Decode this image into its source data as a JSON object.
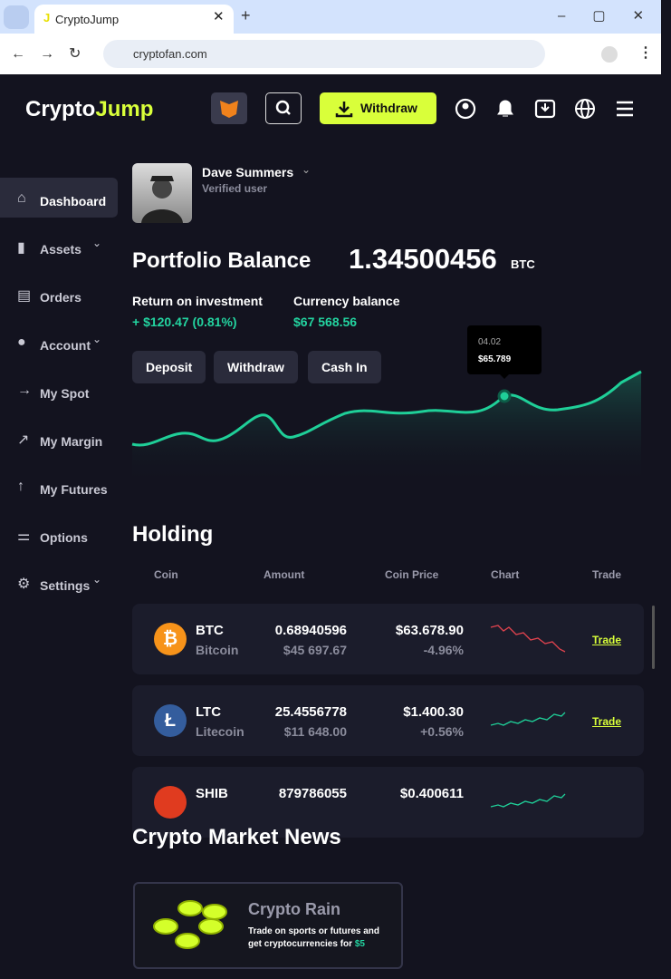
{
  "browser": {
    "tab_title": "CryptoJump",
    "url": "cryptofan.com"
  },
  "header": {
    "logo_part1": "Crypto",
    "logo_part2": "Jump",
    "withdraw_button": "Withdraw"
  },
  "sidebar": {
    "items": [
      "Dashboard",
      "Assets",
      "Orders",
      "Account",
      "My Spot",
      "My Margin",
      "My Futures",
      "Options",
      "Settings"
    ]
  },
  "user": {
    "name": "Dave Summers",
    "status": "Verified user"
  },
  "portfolio": {
    "label": "Portfolio Balance",
    "amount": "1.34500456",
    "unit": "BTC",
    "stats": [
      {
        "label": "Return on investment",
        "value": "+ $120.47 (0.81%)"
      },
      {
        "label": "Currency balance",
        "value": "$67 568.56"
      }
    ],
    "buttons": [
      "Deposit",
      "Withdraw",
      "Cash In"
    ],
    "tooltip": {
      "date": "04.02",
      "value": "$65.789"
    }
  },
  "holding": {
    "title": "Holding",
    "columns": [
      "Coin",
      "Amount",
      "Coin Price",
      "Chart",
      "Trade"
    ],
    "rows": [
      {
        "symbol": "BTC",
        "name": "Bitcoin",
        "amount": "0.68940596",
        "amount_value": "$45 697.67",
        "price": "$63.678.90",
        "change": "-4.96%",
        "action": "Trade"
      },
      {
        "symbol": "LTC",
        "name": "Litecoin",
        "amount": "25.4556778",
        "amount_value": "$11 648.00",
        "price": "$1.400.30",
        "change": "+0.56%",
        "action": "Trade"
      },
      {
        "symbol": "SHIB",
        "amount": "879786055",
        "price": "$0.400611"
      }
    ]
  },
  "news": {
    "title": "Crypto Market News",
    "card_title": "Crypto Rain",
    "card_text": "Trade on sports or futures and get cryptocurrencies for",
    "card_highlight": "$5"
  }
}
